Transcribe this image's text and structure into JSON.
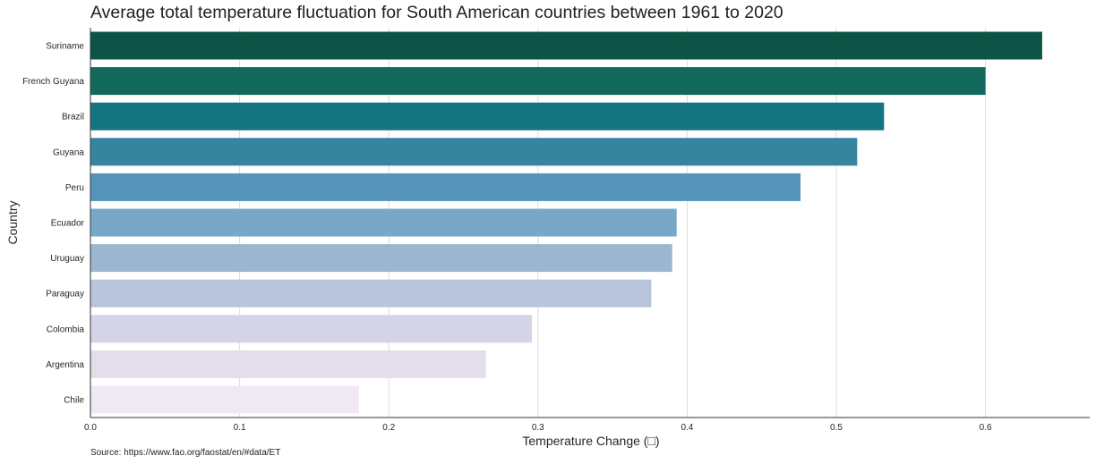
{
  "chart_data": {
    "type": "bar",
    "orientation": "horizontal",
    "title": "Average total temperature fluctuation for South American countries between 1961 to 2020",
    "xlabel": "Temperature Change (□)",
    "ylabel": "Country",
    "source": "Source: https://www.fao.org/faostat/en/#data/ET",
    "categories": [
      "Suriname",
      "French Guyana",
      "Brazil",
      "Guyana",
      "Peru",
      "Ecuador",
      "Uruguay",
      "Paraguay",
      "Colombia",
      "Argentina",
      "Chile"
    ],
    "values": [
      0.638,
      0.6,
      0.532,
      0.514,
      0.476,
      0.393,
      0.39,
      0.376,
      0.296,
      0.265,
      0.18
    ],
    "colors": [
      "#0d5446",
      "#126a5f",
      "#147580",
      "#37849f",
      "#5694b9",
      "#77a8c8",
      "#9cb6d0",
      "#b8c5da",
      "#d3d4e5",
      "#e4deea",
      "#f0e8f2"
    ],
    "xticks": [
      "0.0",
      "0.1",
      "0.2",
      "0.3",
      "0.4",
      "0.5",
      "0.6"
    ],
    "xlim": [
      0,
      0.67
    ],
    "grid": "vertical",
    "legend": "none"
  }
}
